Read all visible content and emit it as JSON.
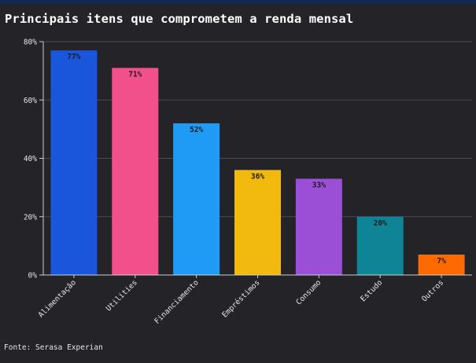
{
  "chart_data": {
    "type": "bar",
    "title": "Principais itens que comprometem a renda mensal",
    "categories": [
      "Alimentação",
      "Utilities",
      "Financiamento",
      "Empréstimos",
      "Consumo",
      "Estudo",
      "Outros"
    ],
    "values": [
      77,
      71,
      52,
      36,
      33,
      20,
      7
    ],
    "data_labels": [
      "77%",
      "71%",
      "52%",
      "36%",
      "33%",
      "20%",
      "7%"
    ],
    "colors": [
      "#1a56db",
      "#f1508a",
      "#1f9bf5",
      "#f2b90f",
      "#9b4fd6",
      "#0e8496",
      "#ff6a00"
    ],
    "ylim": [
      0,
      80
    ],
    "yticks": [
      0,
      20,
      40,
      60,
      80
    ],
    "ytick_labels": [
      "0%",
      "20%",
      "40%",
      "60%",
      "80%"
    ],
    "xlabel": "",
    "ylabel": "",
    "grid": true,
    "legend": "none"
  },
  "source": "Fonte: Serasa Experian"
}
